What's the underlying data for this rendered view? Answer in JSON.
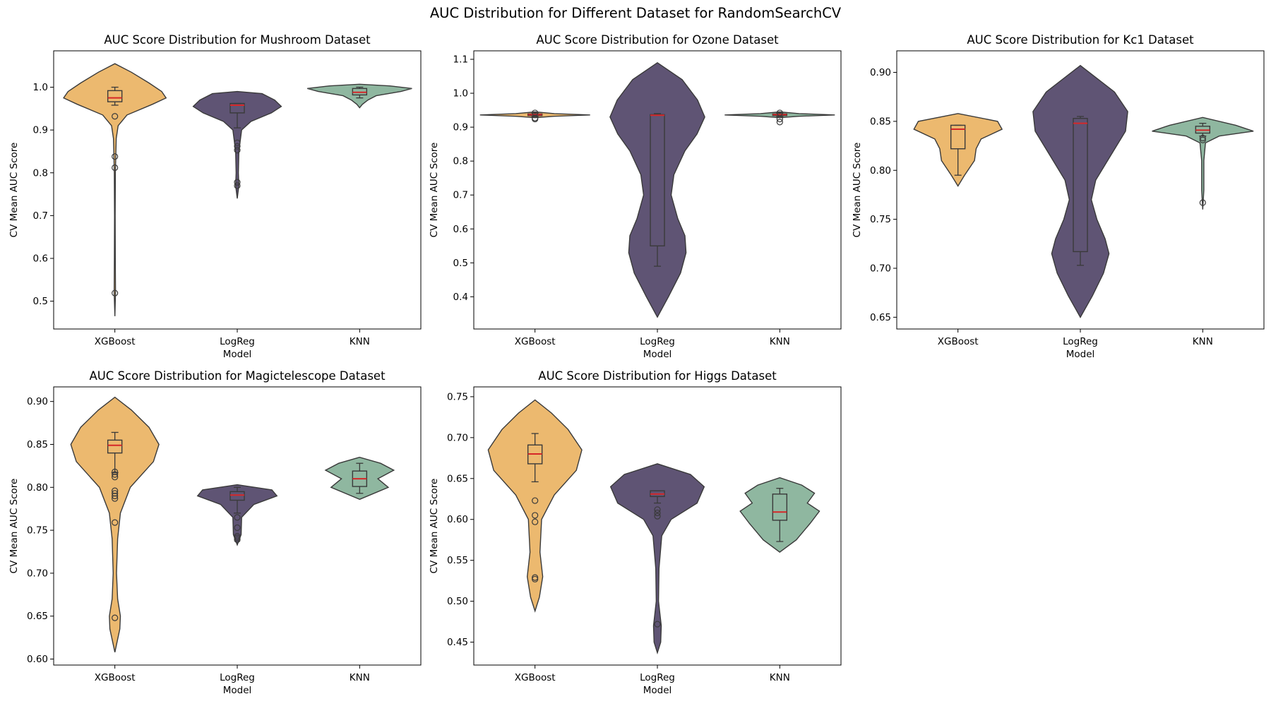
{
  "figure": {
    "title": "AUC Distribution for Different Dataset for RandomSearchCV"
  },
  "colors": {
    "XGBoost": "#ecb96f",
    "LogReg": "#5f5474",
    "KNN": "#8fb7a0",
    "median": "#d62728",
    "edge": "#3a3a3a"
  },
  "chart_data": [
    {
      "type": "violin",
      "title": "AUC Score Distribution for Mushroom Dataset",
      "xlabel": "Model",
      "ylabel": "CV Mean AUC Score",
      "categories": [
        "XGBoost",
        "LogReg",
        "KNN"
      ],
      "ylim": [
        0.435,
        1.085
      ],
      "yticks": [
        0.5,
        0.6,
        0.7,
        0.8,
        0.9,
        1.0
      ],
      "tick_decimals": 1,
      "violins": [
        {
          "name": "XGBoost",
          "min": 0.465,
          "max": 1.055,
          "profile": [
            [
              0.465,
              0.0
            ],
            [
              0.52,
              0.012
            ],
            [
              0.6,
              0.008
            ],
            [
              0.7,
              0.006
            ],
            [
              0.8,
              0.01
            ],
            [
              0.88,
              0.025
            ],
            [
              0.91,
              0.06
            ],
            [
              0.935,
              0.22
            ],
            [
              0.96,
              0.68
            ],
            [
              0.975,
              0.93
            ],
            [
              0.99,
              0.85
            ],
            [
              1.01,
              0.62
            ],
            [
              1.035,
              0.3
            ],
            [
              1.055,
              0.0
            ]
          ],
          "box": {
            "q1": 0.966,
            "median": 0.975,
            "q3": 0.992,
            "whislo": 0.958,
            "whishi": 1.0
          },
          "outliers": [
            0.932,
            0.838,
            0.812,
            0.519
          ]
        },
        {
          "name": "LogReg",
          "min": 0.74,
          "max": 0.99,
          "profile": [
            [
              0.74,
              0.0
            ],
            [
              0.77,
              0.03
            ],
            [
              0.8,
              0.02
            ],
            [
              0.85,
              0.03
            ],
            [
              0.9,
              0.08
            ],
            [
              0.92,
              0.25
            ],
            [
              0.94,
              0.62
            ],
            [
              0.955,
              0.8
            ],
            [
              0.97,
              0.68
            ],
            [
              0.985,
              0.45
            ],
            [
              0.99,
              0.0
            ]
          ],
          "box": {
            "q1": 0.94,
            "median": 0.958,
            "q3": 0.962,
            "whislo": 0.905,
            "whishi": 0.962
          },
          "outliers": [
            0.87,
            0.862,
            0.853,
            0.778,
            0.77
          ]
        },
        {
          "name": "KNN",
          "min": 0.952,
          "max": 1.007,
          "profile": [
            [
              0.952,
              0.0
            ],
            [
              0.96,
              0.05
            ],
            [
              0.97,
              0.15
            ],
            [
              0.98,
              0.3
            ],
            [
              0.99,
              0.75
            ],
            [
              0.997,
              0.95
            ],
            [
              1.003,
              0.55
            ],
            [
              1.007,
              0.0
            ]
          ],
          "box": {
            "q1": 0.982,
            "median": 0.988,
            "q3": 0.997,
            "whislo": 0.975,
            "whishi": 1.0
          },
          "outliers": []
        }
      ]
    },
    {
      "type": "violin",
      "title": "AUC Score Distribution for Ozone Dataset",
      "xlabel": "Model",
      "ylabel": "CV Mean AUC Score",
      "categories": [
        "XGBoost",
        "LogReg",
        "KNN"
      ],
      "ylim": [
        0.305,
        1.125
      ],
      "yticks": [
        0.4,
        0.5,
        0.6,
        0.7,
        0.8,
        0.9,
        1.0,
        1.1
      ],
      "tick_decimals": 1,
      "violins": [
        {
          "name": "XGBoost",
          "min": 0.928,
          "max": 0.945,
          "profile": [
            [
              0.928,
              0.0
            ],
            [
              0.932,
              0.35
            ],
            [
              0.936,
              1.0
            ],
            [
              0.94,
              0.35
            ],
            [
              0.945,
              0.0
            ]
          ],
          "box": {
            "q1": 0.934,
            "median": 0.937,
            "q3": 0.939,
            "whislo": 0.931,
            "whishi": 0.942
          },
          "outliers": [
            0.942,
            0.927,
            0.924
          ]
        },
        {
          "name": "LogReg",
          "min": 0.34,
          "max": 1.09,
          "profile": [
            [
              0.34,
              0.0
            ],
            [
              0.4,
              0.2
            ],
            [
              0.47,
              0.42
            ],
            [
              0.53,
              0.52
            ],
            [
              0.58,
              0.5
            ],
            [
              0.63,
              0.37
            ],
            [
              0.7,
              0.25
            ],
            [
              0.76,
              0.3
            ],
            [
              0.83,
              0.5
            ],
            [
              0.88,
              0.72
            ],
            [
              0.93,
              0.86
            ],
            [
              0.98,
              0.73
            ],
            [
              1.04,
              0.45
            ],
            [
              1.09,
              0.0
            ]
          ],
          "box": {
            "q1": 0.55,
            "median": 0.935,
            "q3": 0.937,
            "whislo": 0.49,
            "whishi": 0.94
          },
          "outliers": []
        },
        {
          "name": "KNN",
          "min": 0.928,
          "max": 0.945,
          "profile": [
            [
              0.928,
              0.0
            ],
            [
              0.932,
              0.35
            ],
            [
              0.936,
              1.0
            ],
            [
              0.94,
              0.35
            ],
            [
              0.945,
              0.0
            ]
          ],
          "box": {
            "q1": 0.934,
            "median": 0.937,
            "q3": 0.939,
            "whislo": 0.931,
            "whishi": 0.942
          },
          "outliers": [
            0.942,
            0.924,
            0.915
          ]
        }
      ]
    },
    {
      "type": "violin",
      "title": "AUC Score Distribution for Kc1 Dataset",
      "xlabel": "Model",
      "ylabel": "CV Mean AUC Score",
      "categories": [
        "XGBoost",
        "LogReg",
        "KNN"
      ],
      "ylim": [
        0.638,
        0.922
      ],
      "yticks": [
        0.65,
        0.7,
        0.75,
        0.8,
        0.85,
        0.9
      ],
      "tick_decimals": 2,
      "violins": [
        {
          "name": "XGBoost",
          "min": 0.784,
          "max": 0.858,
          "profile": [
            [
              0.784,
              0.0
            ],
            [
              0.795,
              0.12
            ],
            [
              0.81,
              0.3
            ],
            [
              0.822,
              0.33
            ],
            [
              0.832,
              0.42
            ],
            [
              0.842,
              0.8
            ],
            [
              0.85,
              0.72
            ],
            [
              0.858,
              0.0
            ]
          ],
          "box": {
            "q1": 0.822,
            "median": 0.842,
            "q3": 0.846,
            "whislo": 0.795,
            "whishi": 0.846
          },
          "outliers": []
        },
        {
          "name": "LogReg",
          "min": 0.65,
          "max": 0.907,
          "profile": [
            [
              0.65,
              0.0
            ],
            [
              0.672,
              0.22
            ],
            [
              0.695,
              0.42
            ],
            [
              0.715,
              0.52
            ],
            [
              0.73,
              0.45
            ],
            [
              0.75,
              0.3
            ],
            [
              0.77,
              0.2
            ],
            [
              0.79,
              0.28
            ],
            [
              0.815,
              0.55
            ],
            [
              0.84,
              0.82
            ],
            [
              0.86,
              0.86
            ],
            [
              0.88,
              0.62
            ],
            [
              0.907,
              0.0
            ]
          ],
          "box": {
            "q1": 0.717,
            "median": 0.848,
            "q3": 0.853,
            "whislo": 0.703,
            "whishi": 0.855
          },
          "outliers": []
        },
        {
          "name": "KNN",
          "min": 0.76,
          "max": 0.854,
          "profile": [
            [
              0.76,
              0.0
            ],
            [
              0.78,
              0.02
            ],
            [
              0.81,
              0.02
            ],
            [
              0.828,
              0.05
            ],
            [
              0.835,
              0.3
            ],
            [
              0.84,
              0.92
            ],
            [
              0.846,
              0.6
            ],
            [
              0.854,
              0.0
            ]
          ],
          "box": {
            "q1": 0.838,
            "median": 0.841,
            "q3": 0.845,
            "whislo": 0.835,
            "whishi": 0.848
          },
          "outliers": [
            0.833,
            0.831,
            0.767
          ]
        }
      ]
    },
    {
      "type": "violin",
      "title": "AUC Score Distribution for Magictelescope Dataset",
      "xlabel": "Model",
      "ylabel": "CV Mean AUC Score",
      "categories": [
        "XGBoost",
        "LogReg",
        "KNN"
      ],
      "ylim": [
        0.593,
        0.917
      ],
      "yticks": [
        0.6,
        0.65,
        0.7,
        0.75,
        0.8,
        0.85,
        0.9
      ],
      "tick_decimals": 2,
      "violins": [
        {
          "name": "XGBoost",
          "min": 0.608,
          "max": 0.905,
          "profile": [
            [
              0.608,
              0.0
            ],
            [
              0.635,
              0.09
            ],
            [
              0.65,
              0.1
            ],
            [
              0.67,
              0.05
            ],
            [
              0.7,
              0.03
            ],
            [
              0.74,
              0.05
            ],
            [
              0.77,
              0.1
            ],
            [
              0.8,
              0.28
            ],
            [
              0.83,
              0.7
            ],
            [
              0.85,
              0.8
            ],
            [
              0.87,
              0.62
            ],
            [
              0.89,
              0.3
            ],
            [
              0.905,
              0.0
            ]
          ],
          "box": {
            "q1": 0.84,
            "median": 0.849,
            "q3": 0.855,
            "whislo": 0.817,
            "whishi": 0.864
          },
          "outliers": [
            0.818,
            0.815,
            0.812,
            0.796,
            0.793,
            0.79,
            0.787,
            0.759,
            0.648
          ]
        },
        {
          "name": "LogReg",
          "min": 0.733,
          "max": 0.803,
          "profile": [
            [
              0.733,
              0.0
            ],
            [
              0.745,
              0.07
            ],
            [
              0.765,
              0.08
            ],
            [
              0.78,
              0.3
            ],
            [
              0.79,
              0.72
            ],
            [
              0.797,
              0.63
            ],
            [
              0.803,
              0.0
            ]
          ],
          "box": {
            "q1": 0.785,
            "median": 0.791,
            "q3": 0.795,
            "whislo": 0.77,
            "whishi": 0.8
          },
          "outliers": [
            0.765,
            0.753,
            0.743,
            0.741,
            0.739
          ]
        },
        {
          "name": "KNN",
          "min": 0.786,
          "max": 0.835,
          "profile": [
            [
              0.786,
              0.0
            ],
            [
              0.8,
              0.52
            ],
            [
              0.81,
              0.33
            ],
            [
              0.82,
              0.62
            ],
            [
              0.828,
              0.38
            ],
            [
              0.835,
              0.0
            ]
          ],
          "box": {
            "q1": 0.801,
            "median": 0.81,
            "q3": 0.819,
            "whislo": 0.793,
            "whishi": 0.828
          },
          "outliers": []
        }
      ]
    },
    {
      "type": "violin",
      "title": "AUC Score Distribution for Higgs Dataset",
      "xlabel": "Model",
      "ylabel": "CV Mean AUC Score",
      "categories": [
        "XGBoost",
        "LogReg",
        "KNN"
      ],
      "ylim": [
        0.422,
        0.762
      ],
      "yticks": [
        0.45,
        0.5,
        0.55,
        0.6,
        0.65,
        0.7,
        0.75
      ],
      "tick_decimals": 2,
      "violins": [
        {
          "name": "XGBoost",
          "min": 0.488,
          "max": 0.746,
          "profile": [
            [
              0.488,
              0.0
            ],
            [
              0.505,
              0.08
            ],
            [
              0.53,
              0.14
            ],
            [
              0.56,
              0.09
            ],
            [
              0.6,
              0.12
            ],
            [
              0.63,
              0.35
            ],
            [
              0.66,
              0.75
            ],
            [
              0.685,
              0.85
            ],
            [
              0.71,
              0.6
            ],
            [
              0.73,
              0.3
            ],
            [
              0.746,
              0.0
            ]
          ],
          "box": {
            "q1": 0.668,
            "median": 0.68,
            "q3": 0.691,
            "whislo": 0.646,
            "whishi": 0.705
          },
          "outliers": [
            0.623,
            0.605,
            0.597,
            0.529,
            0.527
          ]
        },
        {
          "name": "LogReg",
          "min": 0.437,
          "max": 0.668,
          "profile": [
            [
              0.437,
              0.0
            ],
            [
              0.45,
              0.06
            ],
            [
              0.47,
              0.07
            ],
            [
              0.5,
              0.02
            ],
            [
              0.54,
              0.03
            ],
            [
              0.58,
              0.08
            ],
            [
              0.6,
              0.25
            ],
            [
              0.62,
              0.72
            ],
            [
              0.64,
              0.85
            ],
            [
              0.655,
              0.6
            ],
            [
              0.668,
              0.0
            ]
          ],
          "box": {
            "q1": 0.628,
            "median": 0.631,
            "q3": 0.635,
            "whislo": 0.62,
            "whishi": 0.635
          },
          "outliers": [
            0.612,
            0.608,
            0.604,
            0.472
          ]
        },
        {
          "name": "KNN",
          "min": 0.56,
          "max": 0.651,
          "profile": [
            [
              0.56,
              0.0
            ],
            [
              0.575,
              0.3
            ],
            [
              0.595,
              0.55
            ],
            [
              0.61,
              0.72
            ],
            [
              0.62,
              0.5
            ],
            [
              0.632,
              0.63
            ],
            [
              0.642,
              0.4
            ],
            [
              0.651,
              0.0
            ]
          ],
          "box": {
            "q1": 0.599,
            "median": 0.609,
            "q3": 0.631,
            "whislo": 0.573,
            "whishi": 0.638
          },
          "outliers": []
        }
      ]
    }
  ]
}
